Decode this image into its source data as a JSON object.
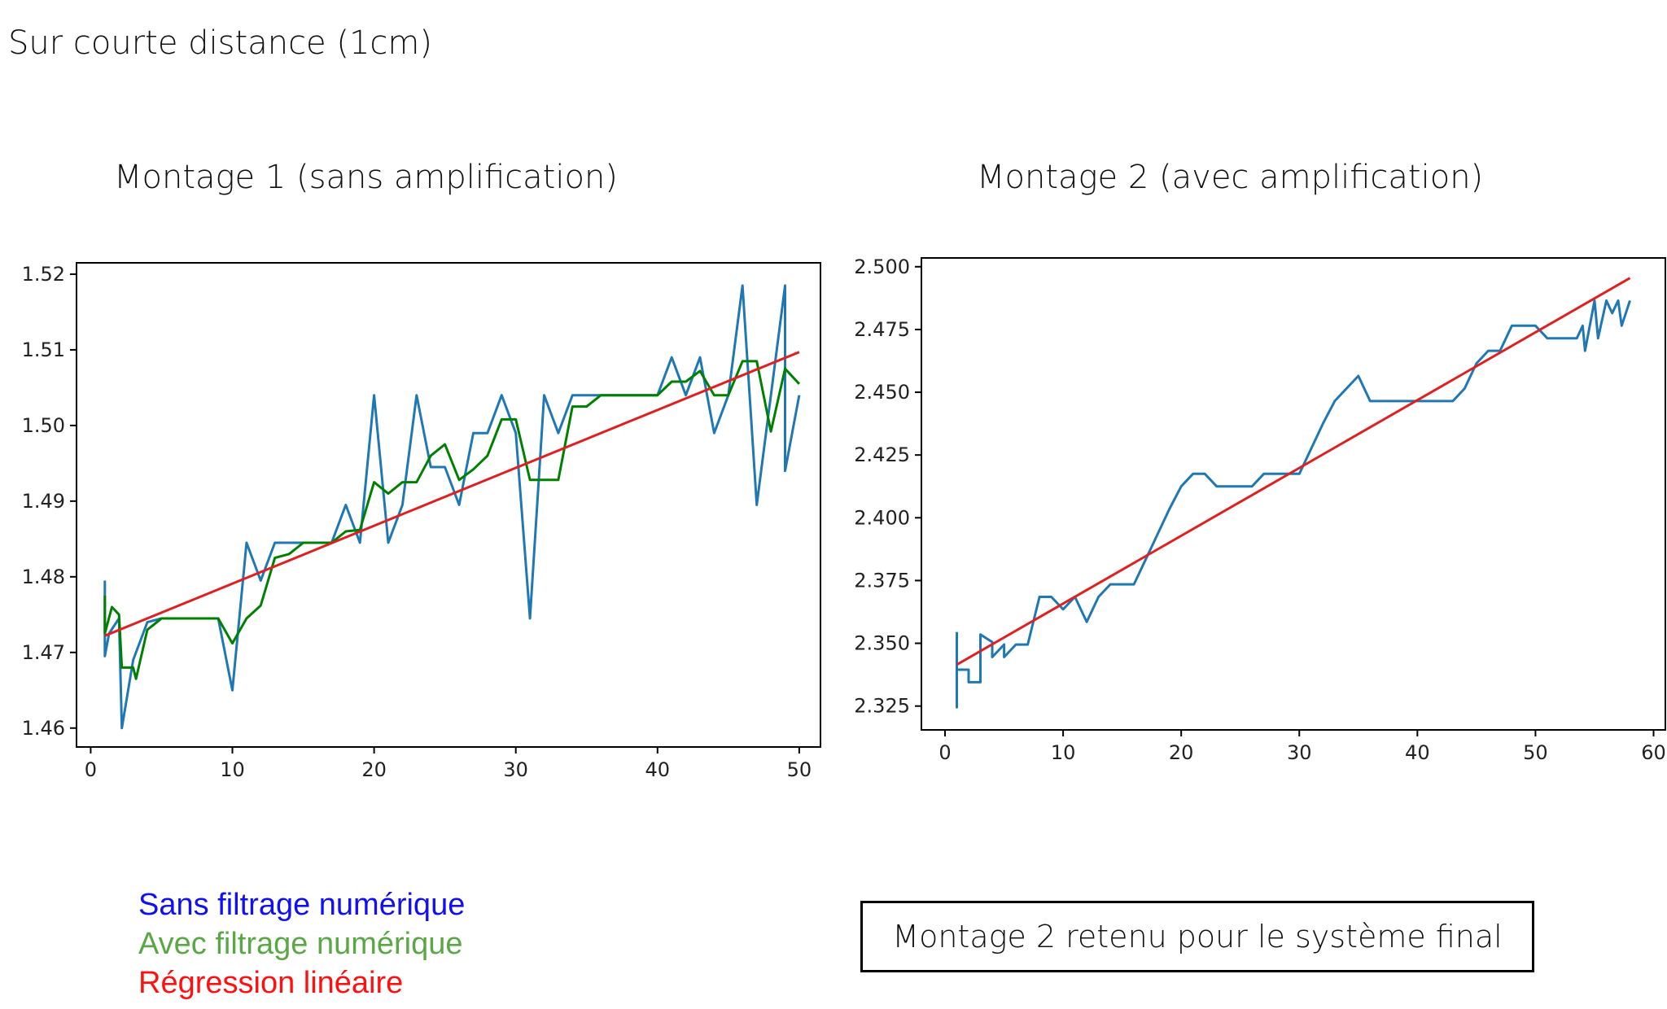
{
  "heading": "Sur courte distance (1cm)",
  "chart_data": [
    {
      "type": "line",
      "title": "Montage 1 (sans amplification)",
      "xlabel": "",
      "ylabel": "",
      "xlim": [
        -1,
        51.5
      ],
      "ylim": [
        1.4575,
        1.5215
      ],
      "xticks": [
        0,
        10,
        20,
        30,
        40,
        50
      ],
      "yticks": [
        1.46,
        1.47,
        1.48,
        1.49,
        1.5,
        1.51,
        1.52
      ],
      "ytick_labels": [
        "1.46",
        "1.47",
        "1.48",
        "1.49",
        "1.50",
        "1.51",
        "1.52"
      ],
      "series": [
        {
          "color": "#1f77b4",
          "x": [
            1,
            1,
            1.3,
            2,
            2.2,
            3,
            4,
            5,
            6,
            7,
            8,
            9,
            10,
            11,
            12,
            13,
            14,
            15,
            16,
            17,
            18,
            19,
            20,
            21,
            22,
            23,
            24,
            25,
            26,
            27,
            28,
            29,
            30,
            31,
            32,
            33,
            34,
            35,
            36,
            37,
            38,
            39,
            40,
            41,
            42,
            43,
            44,
            45,
            46,
            47,
            48,
            49,
            49,
            50
          ],
          "y": [
            1.4795,
            1.4695,
            1.4725,
            1.4745,
            1.46,
            1.469,
            1.474,
            1.4745,
            1.4745,
            1.4745,
            1.4745,
            1.4745,
            1.465,
            1.4845,
            1.4795,
            1.4845,
            1.4845,
            1.4845,
            1.4845,
            1.4845,
            1.4895,
            1.4845,
            1.504,
            1.4845,
            1.4895,
            1.504,
            1.4945,
            1.4945,
            1.4895,
            1.499,
            1.499,
            1.504,
            1.499,
            1.4745,
            1.504,
            1.499,
            1.504,
            1.504,
            1.504,
            1.504,
            1.504,
            1.504,
            1.504,
            1.509,
            1.504,
            1.509,
            1.499,
            1.504,
            1.5185,
            1.4895,
            1.504,
            1.5185,
            1.494,
            1.504
          ]
        },
        {
          "color": "#008000",
          "x": [
            1,
            1,
            1.5,
            2,
            2.2,
            3,
            3.2,
            4,
            5,
            6,
            7,
            8,
            9,
            10,
            11,
            12,
            13,
            14,
            15,
            16,
            17,
            18,
            19,
            20,
            21,
            22,
            23,
            24,
            25,
            26,
            27,
            28,
            29,
            30,
            31,
            32,
            33,
            34,
            35,
            36,
            37,
            38,
            39,
            40,
            41,
            42,
            43,
            44,
            45,
            46,
            47,
            48,
            49,
            50
          ],
          "y": [
            1.4775,
            1.4725,
            1.476,
            1.475,
            1.468,
            1.468,
            1.4665,
            1.473,
            1.4745,
            1.4745,
            1.4745,
            1.4745,
            1.4745,
            1.4712,
            1.4745,
            1.4762,
            1.4825,
            1.483,
            1.4845,
            1.4845,
            1.4845,
            1.486,
            1.4862,
            1.4925,
            1.491,
            1.4925,
            1.4925,
            1.496,
            1.4975,
            1.4928,
            1.4942,
            1.496,
            1.5008,
            1.5008,
            1.4928,
            1.4928,
            1.4928,
            1.5025,
            1.5025,
            1.504,
            1.504,
            1.504,
            1.504,
            1.504,
            1.5058,
            1.5058,
            1.5072,
            1.504,
            1.504,
            1.5085,
            1.5085,
            1.4992,
            1.5075,
            1.5055
          ]
        },
        {
          "color": "#e02020",
          "x": [
            1,
            50
          ],
          "y": [
            1.4722,
            1.5097
          ]
        }
      ]
    },
    {
      "type": "line",
      "title": "Montage 2 (avec amplification)",
      "xlabel": "",
      "ylabel": "",
      "xlim": [
        -2,
        61
      ],
      "ylim": [
        2.3155,
        2.5035
      ],
      "xticks": [
        0,
        10,
        20,
        30,
        40,
        50,
        60
      ],
      "yticks": [
        2.325,
        2.35,
        2.375,
        2.4,
        2.425,
        2.45,
        2.475,
        2.5
      ],
      "ytick_labels": [
        "2.325",
        "2.350",
        "2.375",
        "2.400",
        "2.425",
        "2.450",
        "2.475",
        "2.500"
      ],
      "series": [
        {
          "color": "#1f77b4",
          "x": [
            1,
            1,
            1,
            2,
            2,
            3,
            3,
            4,
            4,
            5,
            5,
            6,
            7,
            8,
            9,
            10,
            11,
            12,
            13,
            14,
            15,
            16,
            17,
            18,
            19,
            20,
            21,
            22,
            23,
            24,
            25,
            26,
            27,
            28,
            29,
            30,
            31,
            32,
            33,
            34,
            35,
            36,
            37,
            38,
            39,
            40,
            41,
            42,
            43,
            44,
            45,
            46,
            47,
            48,
            49,
            50,
            51,
            52,
            53,
            53.5,
            54,
            54.2,
            55,
            55.3,
            56,
            56.5,
            57,
            57.3,
            58
          ],
          "y": [
            2.3545,
            2.3245,
            2.3395,
            2.3395,
            2.3345,
            2.3345,
            2.3535,
            2.3505,
            2.3445,
            2.3495,
            2.3445,
            2.3495,
            2.3495,
            2.3685,
            2.3685,
            2.3635,
            2.3685,
            2.3585,
            2.3685,
            2.3735,
            2.3735,
            2.3735,
            2.3835,
            2.3935,
            2.4035,
            2.4125,
            2.4175,
            2.4175,
            2.4125,
            2.4125,
            2.4125,
            2.4125,
            2.4175,
            2.4175,
            2.4175,
            2.4175,
            2.4275,
            2.4375,
            2.4465,
            2.4515,
            2.4565,
            2.4465,
            2.4465,
            2.4465,
            2.4465,
            2.4465,
            2.4465,
            2.4465,
            2.4465,
            2.4515,
            2.4615,
            2.4665,
            2.4665,
            2.4765,
            2.4765,
            2.4765,
            2.4715,
            2.4715,
            2.4715,
            2.4715,
            2.4765,
            2.4665,
            2.4865,
            2.4715,
            2.4865,
            2.4815,
            2.4865,
            2.4765,
            2.4865
          ]
        },
        {
          "color": "#e02020",
          "x": [
            1,
            58
          ],
          "y": [
            2.3415,
            2.4955
          ]
        }
      ]
    }
  ],
  "legend": {
    "items": [
      {
        "label": "Sans filtrage numérique",
        "color": "#1010f0"
      },
      {
        "label": "Avec filtrage numérique",
        "color": "#5aa845"
      },
      {
        "label": "Régression linéaire",
        "color": "#ff1010"
      }
    ]
  },
  "note": "Montage 2 retenu pour le système final"
}
